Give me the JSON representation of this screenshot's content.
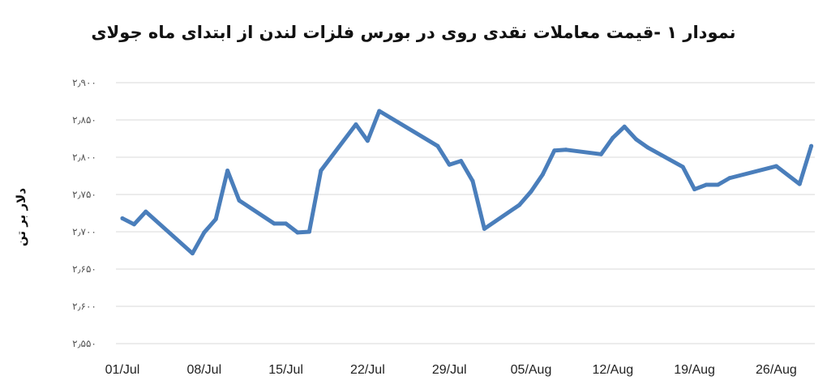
{
  "chart_data": {
    "type": "line",
    "title": "نمودار ۱ -قیمت معاملات نقدی روی در بورس فلزات لندن از ابتدای ماه جولای",
    "xlabel": "",
    "ylabel": "دلار بر تن",
    "ylim": [
      2550,
      2900
    ],
    "yticks": [
      2900,
      2850,
      2800,
      2750,
      2700,
      2650,
      2600,
      2550
    ],
    "ytick_labels": [
      "۲٫۹۰۰",
      "۲٫۸۵۰",
      "۲٫۸۰۰",
      "۲٫۷۵۰",
      "۲٫۷۰۰",
      "۲٫۶۵۰",
      "۲٫۶۰۰",
      "۲٫۵۵۰"
    ],
    "xtick_labels": [
      "01/Jul",
      "08/Jul",
      "15/Jul",
      "22/Jul",
      "29/Jul",
      "05/Aug",
      "12/Aug",
      "19/Aug",
      "26/Aug"
    ],
    "grid": true,
    "legend": "none",
    "line_color": "#4a7ebb",
    "series": [
      {
        "x": [
          "01/Jul",
          "02/Jul",
          "03/Jul",
          "07/Jul",
          "08/Jul",
          "09/Jul",
          "10/Jul",
          "11/Jul",
          "14/Jul",
          "15/Jul",
          "16/Jul",
          "17/Jul",
          "18/Jul",
          "21/Jul",
          "22/Jul",
          "23/Jul",
          "28/Jul",
          "29/Jul",
          "30/Jul",
          "31/Jul",
          "01/Aug",
          "04/Aug",
          "05/Aug",
          "06/Aug",
          "07/Aug",
          "08/Aug",
          "11/Aug",
          "12/Aug",
          "13/Aug",
          "14/Aug",
          "15/Aug",
          "18/Aug",
          "19/Aug",
          "20/Aug",
          "21/Aug",
          "22/Aug",
          "26/Aug",
          "28/Aug",
          "29/Aug"
        ],
        "values": [
          2718,
          2710,
          2727,
          2671,
          2699,
          2717,
          2782,
          2742,
          2711,
          2711,
          2699,
          2700,
          2782,
          2844,
          2822,
          2862,
          2815,
          2790,
          2795,
          2768,
          2704,
          2736,
          2754,
          2777,
          2809,
          2810,
          2804,
          2826,
          2841,
          2824,
          2813,
          2787,
          2757,
          2763,
          2763,
          2772,
          2788,
          2764,
          2815
        ]
      }
    ]
  }
}
